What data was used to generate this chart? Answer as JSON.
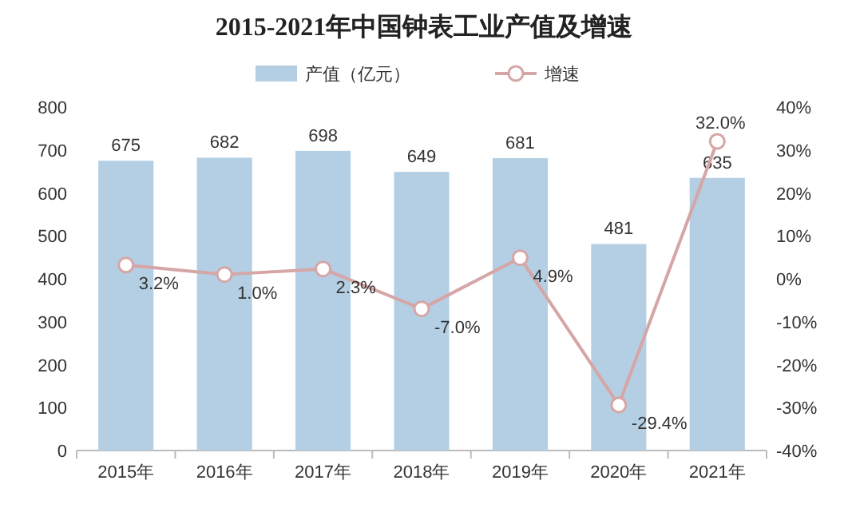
{
  "chart_data": {
    "type": "bar",
    "title": "2015-2021年中国钟表工业产值及增速",
    "categories": [
      "2015年",
      "2016年",
      "2017年",
      "2018年",
      "2019年",
      "2020年",
      "2021年"
    ],
    "series": [
      {
        "name": "产值（亿元）",
        "color": "#b4cfe3",
        "values": [
          675,
          682,
          698,
          649,
          681,
          481,
          635
        ],
        "value_labels": [
          "675",
          "682",
          "698",
          "649",
          "681",
          "481",
          "635"
        ]
      },
      {
        "name": "增速",
        "type": "line",
        "axis": "y2",
        "color": "#d6a5a5",
        "values": [
          3.2,
          1.0,
          2.3,
          -7.0,
          4.9,
          -29.4,
          32.0
        ],
        "value_labels": [
          "3.2%",
          "1.0%",
          "2.3%",
          "-7.0%",
          "4.9%",
          "-29.4%",
          "32.0%"
        ]
      }
    ],
    "ylim": [
      0,
      800
    ],
    "yticks": [
      0,
      100,
      200,
      300,
      400,
      500,
      600,
      700,
      800
    ],
    "y2lim": [
      -40,
      40
    ],
    "y2ticks": [
      {
        "value": -40,
        "label": "-40%"
      },
      {
        "value": -30,
        "label": "-30%"
      },
      {
        "value": -20,
        "label": "-20%"
      },
      {
        "value": -10,
        "label": "-10%"
      },
      {
        "value": 0,
        "label": "0%"
      },
      {
        "value": 10,
        "label": "10%"
      },
      {
        "value": 20,
        "label": "20%"
      },
      {
        "value": 30,
        "label": "30%"
      },
      {
        "value": 40,
        "label": "40%"
      }
    ],
    "legend": "top",
    "marker": "circle",
    "line_style": "solid"
  }
}
